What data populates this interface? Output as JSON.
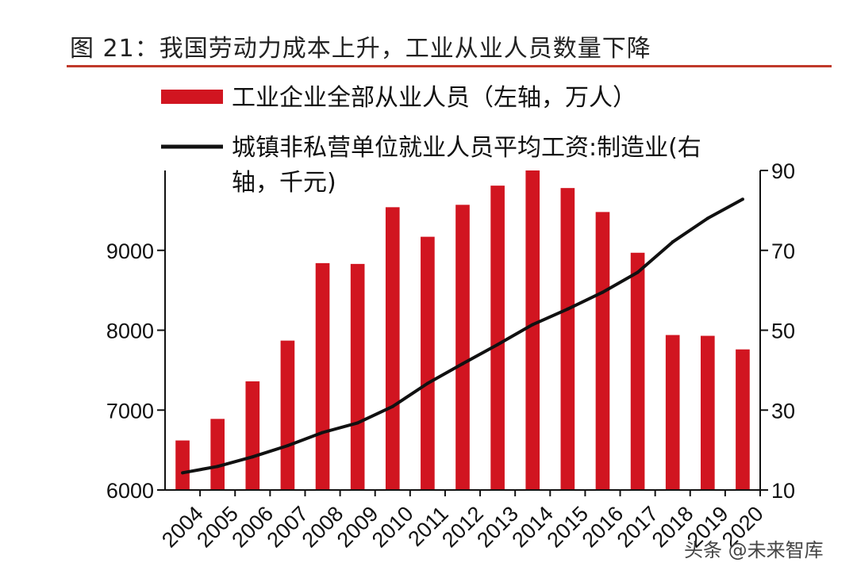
{
  "title": "图 21：我国劳动力成本上升，工业从业人员数量下降",
  "colors": {
    "bar": "#d11520",
    "line": "#111111",
    "rule": "#c0392b"
  },
  "watermark": "头条 @未来智库",
  "chart_data": {
    "type": "bar",
    "categories": [
      "2004",
      "2005",
      "2006",
      "2007",
      "2008",
      "2009",
      "2010",
      "2011",
      "2012",
      "2013",
      "2014",
      "2015",
      "2016",
      "2017",
      "2018",
      "2019",
      "2020"
    ],
    "left_axis": {
      "ylim": [
        6000,
        10000
      ],
      "ticks": [
        6000,
        7000,
        8000,
        9000
      ]
    },
    "right_axis": {
      "ylim": [
        10,
        90
      ],
      "ticks": [
        10,
        30,
        50,
        70,
        90
      ]
    },
    "legend_placement": "top-left",
    "grid": false,
    "series": [
      {
        "name": "工业企业全部从业人员（左轴，万人）",
        "kind": "bar",
        "axis": "left",
        "values": [
          6620,
          6890,
          7360,
          7870,
          8840,
          8830,
          9540,
          9170,
          9570,
          9810,
          10000,
          9780,
          9480,
          8970,
          7940,
          7930,
          7760
        ]
      },
      {
        "name": "城镇非私营单位就业人员平均工资:制造业(右轴，千元)",
        "name_lines": [
          "城镇非私营单位就业人员平均工资:制造业(右",
          "轴，千元)"
        ],
        "kind": "line",
        "axis": "right",
        "values": [
          14.3,
          15.9,
          18.3,
          21.1,
          24.4,
          26.8,
          30.9,
          36.7,
          41.6,
          46.4,
          51.4,
          55.3,
          59.5,
          64.5,
          72.1,
          78.0,
          82.8
        ]
      }
    ]
  }
}
